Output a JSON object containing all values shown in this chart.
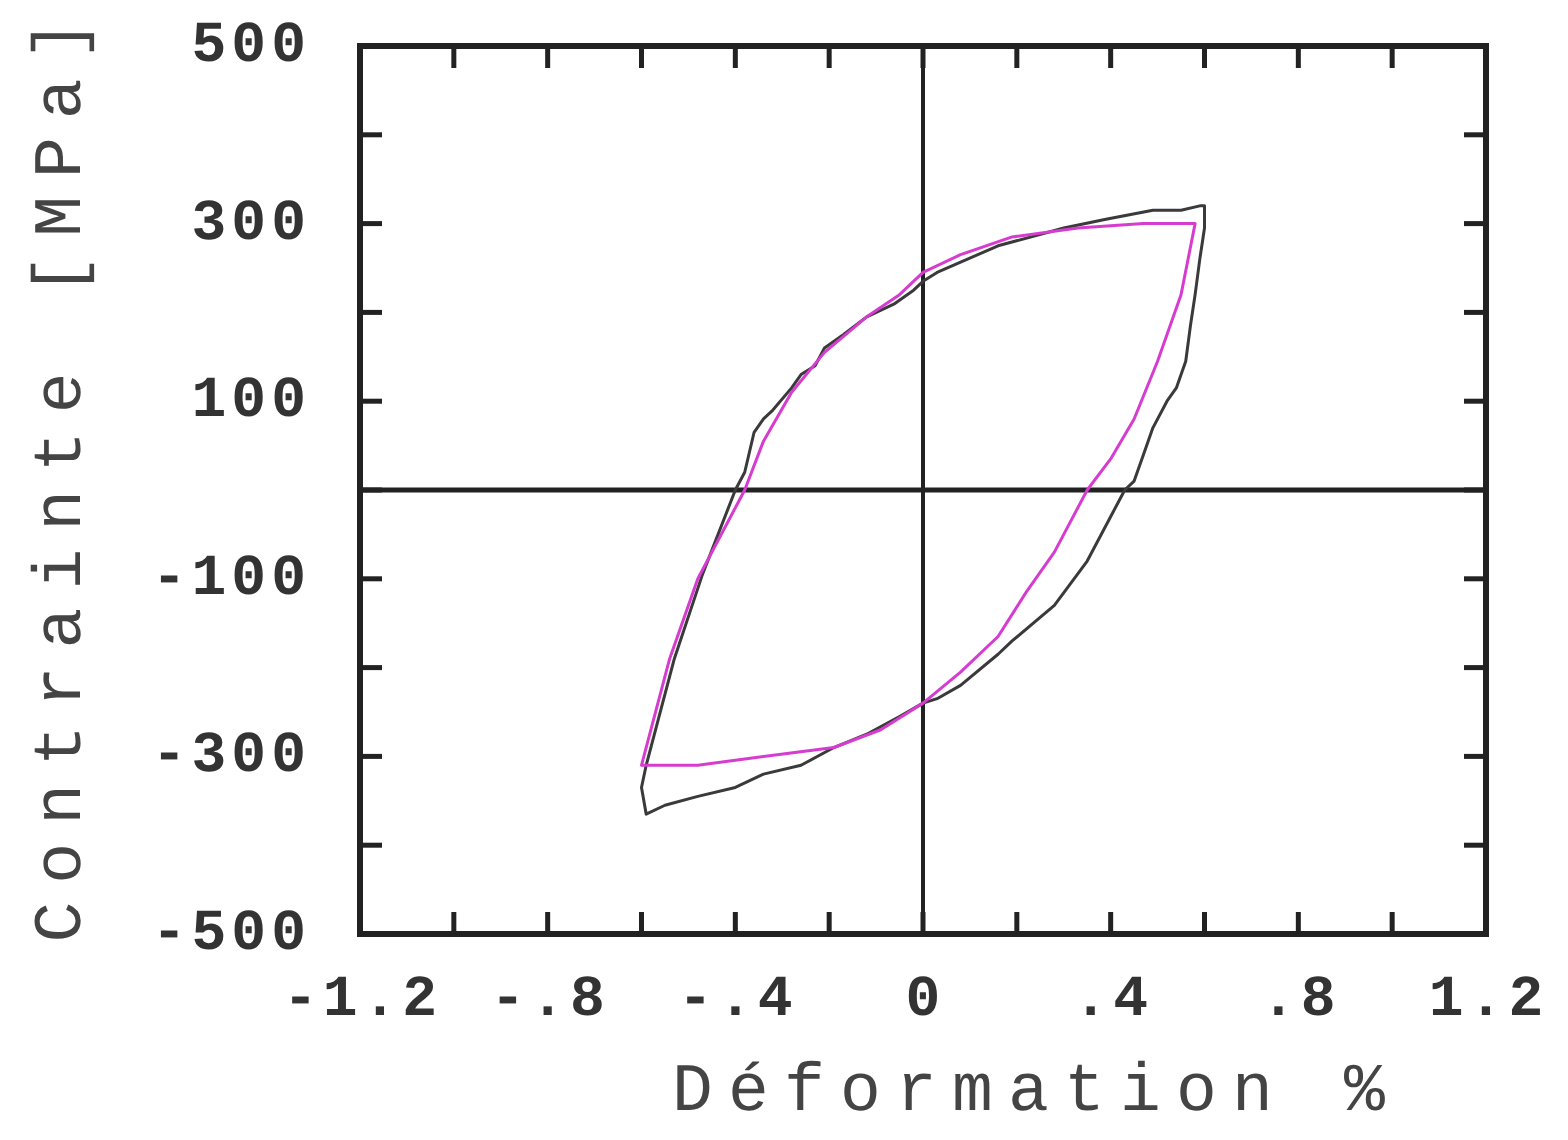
{
  "chart_data": {
    "type": "line",
    "xlabel": "Déformation %",
    "ylabel": "Contrainte [MPa]",
    "xlim": [
      -1.2,
      1.2
    ],
    "ylim": [
      -500,
      500
    ],
    "xticks": [
      -1.2,
      {
        "value": -1.0,
        "label": null
      },
      {
        "value": -0.8,
        "label": "-.8"
      },
      {
        "value": -0.6,
        "label": null
      },
      {
        "value": -0.4,
        "label": "-.4"
      },
      {
        "value": -0.2,
        "label": null
      },
      0,
      {
        "value": 0.2,
        "label": null
      },
      {
        "value": 0.4,
        "label": ".4"
      },
      {
        "value": 0.6,
        "label": null
      },
      {
        "value": 0.8,
        "label": ".8"
      },
      {
        "value": 1.0,
        "label": null
      },
      1.2
    ],
    "yticks": [
      500,
      {
        "value": 400,
        "label": null
      },
      300,
      {
        "value": 200,
        "label": null
      },
      100,
      {
        "value": 0,
        "label": null
      },
      -100,
      {
        "value": -200,
        "label": null
      },
      -300,
      {
        "value": -400,
        "label": null
      },
      -500
    ],
    "line_style": "solid",
    "series": [
      {
        "color": "#3a3a3a",
        "x": [
          0.6,
          0.6,
          0.59,
          0.58,
          0.57,
          0.56,
          0.54,
          0.52,
          0.49,
          0.47,
          0.45,
          0.43,
          0.39,
          0.35,
          0.28,
          0.19,
          0.16,
          0.08,
          0.03,
          0,
          -0.05,
          -0.12,
          -0.19,
          -0.26,
          -0.34,
          -0.4,
          -0.48,
          -0.55,
          -0.59,
          -0.6,
          -0.59,
          -0.53,
          -0.47,
          -0.4,
          -0.38,
          -0.36,
          -0.34,
          -0.32,
          -0.28,
          -0.26,
          -0.23,
          -0.21,
          -0.17,
          -0.12,
          -0.06,
          -0.02,
          0,
          0.03,
          0.16,
          0.3,
          0.39,
          0.49,
          0.55,
          0.59,
          0.6,
          0.6
        ],
        "values": [
          320,
          295,
          260,
          220,
          185,
          145,
          115,
          100,
          70,
          40,
          10,
          0,
          -40,
          -80,
          -130,
          -170,
          -185,
          -220,
          -235,
          -240,
          -255,
          -275,
          -290,
          -310,
          -320,
          -335,
          -345,
          -355,
          -365,
          -335,
          -310,
          -190,
          -95,
          0,
          20,
          65,
          80,
          90,
          115,
          130,
          140,
          160,
          175,
          195,
          210,
          225,
          235,
          245,
          275,
          295,
          305,
          315,
          315,
          320,
          320,
          295
        ]
      },
      {
        "color": "#d63cd0",
        "x": [
          0.58,
          0.55,
          0.5,
          0.45,
          0.4,
          0.35,
          0.28,
          0.22,
          0.16,
          0.08,
          0,
          -0.09,
          -0.19,
          -0.34,
          -0.48,
          -0.6,
          -0.54,
          -0.48,
          -0.38,
          -0.34,
          -0.28,
          -0.21,
          -0.12,
          -0.05,
          0,
          0.08,
          0.19,
          0.33,
          0.47,
          0.58,
          0.55
        ],
        "values": [
          300,
          220,
          145,
          80,
          35,
          0,
          -70,
          -115,
          -165,
          -205,
          -240,
          -270,
          -290,
          -300,
          -310,
          -310,
          -190,
          -100,
          0,
          55,
          110,
          155,
          195,
          220,
          245,
          265,
          285,
          295,
          300,
          300,
          220
        ]
      }
    ]
  }
}
